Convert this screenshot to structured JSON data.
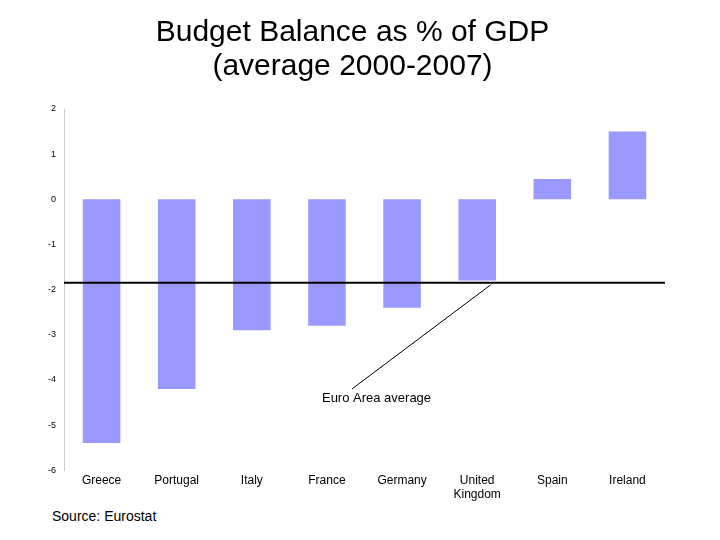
{
  "chart_data": {
    "type": "bar",
    "title": [
      "Budget Balance as % of GDP",
      "(average 2000-2007)"
    ],
    "categories": [
      "Greece",
      "Portugal",
      "Italy",
      "France",
      "Germany",
      "United Kingdom",
      "Spain",
      "Ireland"
    ],
    "values": [
      -5.4,
      -4.2,
      -2.9,
      -2.8,
      -2.4,
      -1.8,
      0.45,
      1.5
    ],
    "color": "#9999ff",
    "ylim": [
      -6,
      2
    ],
    "yticks": [
      -6,
      -5,
      -4,
      -3,
      -2,
      -1,
      0,
      1,
      2
    ],
    "grid": false,
    "annotations": [
      {
        "text": "Euro Area average",
        "y": -1.85
      }
    ],
    "source": "Source: Eurostat"
  }
}
